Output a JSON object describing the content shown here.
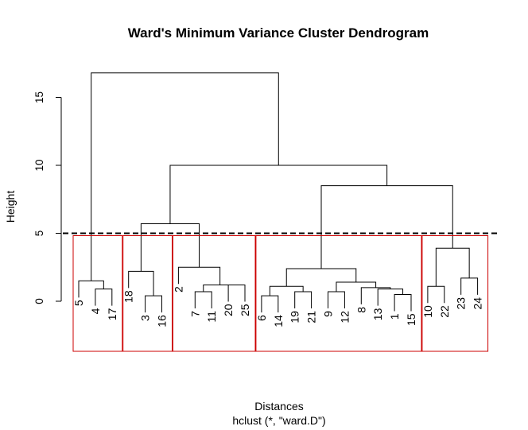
{
  "chart_data": {
    "type": "dendrogram",
    "title": "Ward's Minimum Variance Cluster Dendrogram",
    "xlabel": "Distances",
    "sub": "hclust (*, \"ward.D\")",
    "ylabel": "Height",
    "ylim": [
      0,
      17
    ],
    "yticks": [
      0,
      5,
      10,
      15
    ],
    "ytick_labels": [
      "0",
      "5",
      "10",
      "15"
    ],
    "cut_height": 5,
    "cluster_border_color": "#cc0000",
    "leaf_order": [
      "5",
      "4",
      "17",
      "18",
      "3",
      "16",
      "2",
      "7",
      "11",
      "20",
      "25",
      "6",
      "14",
      "19",
      "21",
      "9",
      "12",
      "8",
      "13",
      "1",
      "15",
      "10",
      "22",
      "23",
      "24"
    ],
    "merges": [
      {
        "a": "4",
        "b": "17",
        "h": 0.9
      },
      {
        "a": "5",
        "b": "m0",
        "h": 1.5
      },
      {
        "a": "3",
        "b": "16",
        "h": 0.4
      },
      {
        "a": "18",
        "b": "m2",
        "h": 2.2
      },
      {
        "a": "7",
        "b": "11",
        "h": 0.7
      },
      {
        "a": "20",
        "b": "25",
        "h": 1.2
      },
      {
        "a": "m4",
        "b": "m5",
        "h": 1.2
      },
      {
        "a": "2",
        "b": "m6",
        "h": 2.5
      },
      {
        "a": "6",
        "b": "14",
        "h": 0.4
      },
      {
        "a": "19",
        "b": "21",
        "h": 0.7
      },
      {
        "a": "m8",
        "b": "m9",
        "h": 1.1
      },
      {
        "a": "9",
        "b": "12",
        "h": 0.7
      },
      {
        "a": "1",
        "b": "15",
        "h": 0.5
      },
      {
        "a": "13",
        "b": "m12",
        "h": 0.9
      },
      {
        "a": "8",
        "b": "m13",
        "h": 1.0
      },
      {
        "a": "m11",
        "b": "m14",
        "h": 1.4
      },
      {
        "a": "m10",
        "b": "m15",
        "h": 2.4
      },
      {
        "a": "10",
        "b": "22",
        "h": 1.1
      },
      {
        "a": "23",
        "b": "24",
        "h": 1.7
      },
      {
        "a": "m17",
        "b": "m18",
        "h": 3.9
      },
      {
        "a": "m16",
        "b": "m19",
        "h": 8.5
      },
      {
        "a": "m3",
        "b": "m7",
        "h": 5.7
      },
      {
        "a": "m21",
        "b": "m20",
        "h": 10.0
      },
      {
        "a": "m1",
        "b": "m22",
        "h": 16.8
      }
    ],
    "clusters": [
      [
        "5",
        "4",
        "17"
      ],
      [
        "18",
        "3",
        "16"
      ],
      [
        "2",
        "7",
        "11",
        "20",
        "25"
      ],
      [
        "6",
        "14",
        "19",
        "21",
        "9",
        "12",
        "8",
        "13",
        "1",
        "15"
      ],
      [
        "10",
        "22",
        "23",
        "24"
      ]
    ]
  }
}
